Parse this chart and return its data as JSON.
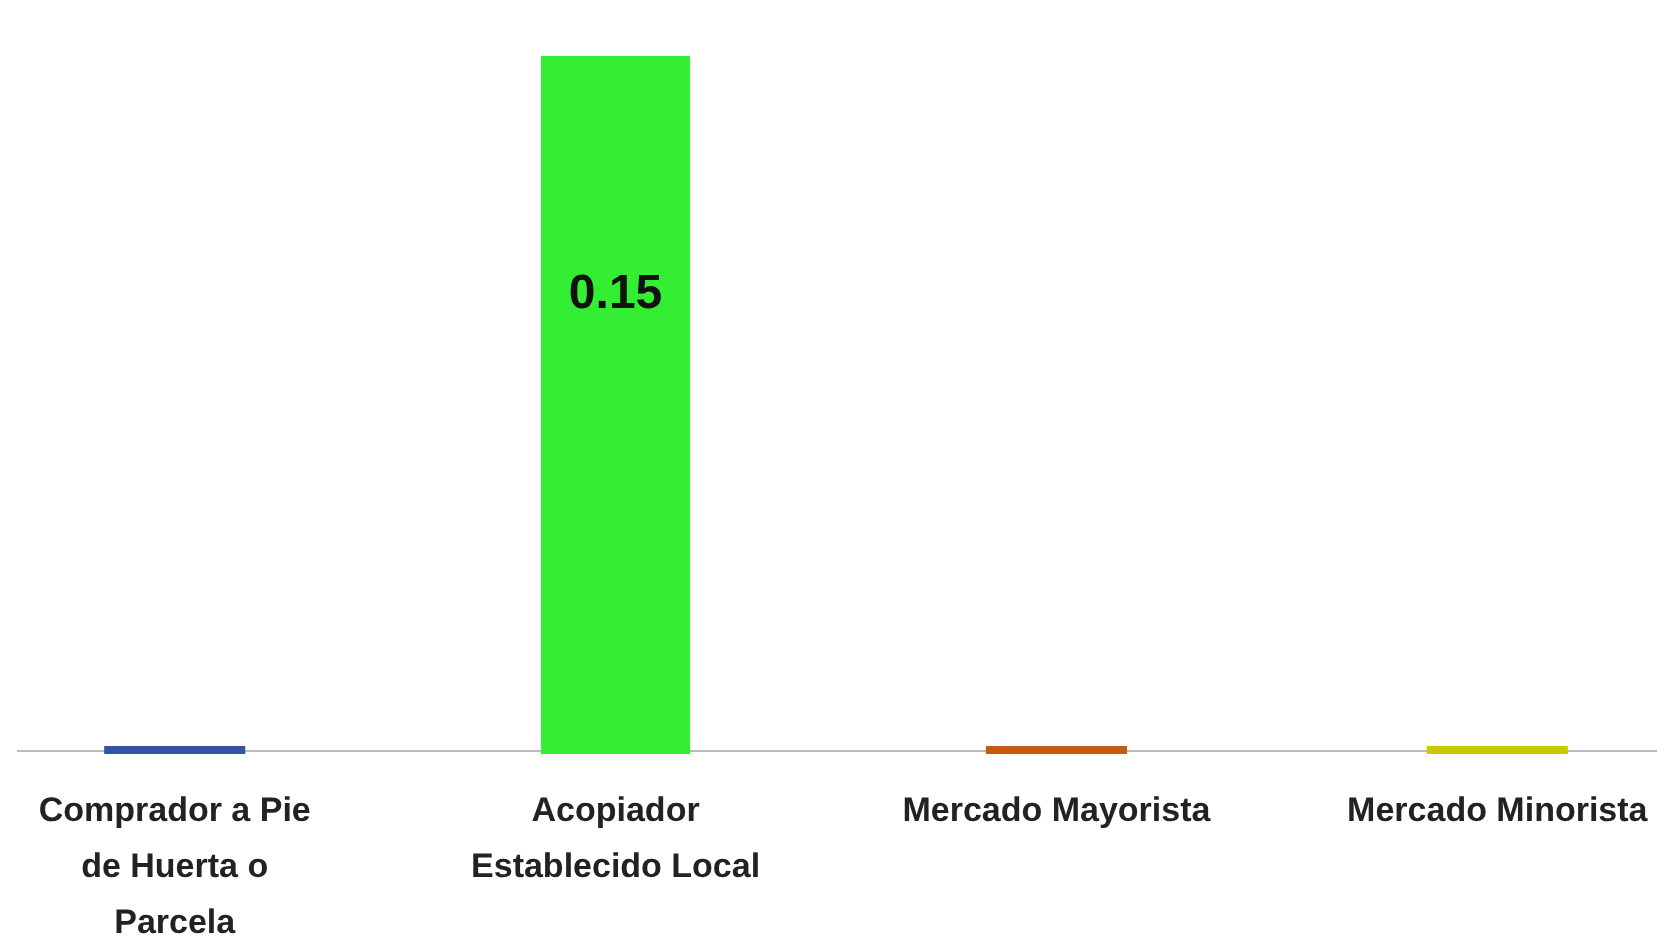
{
  "chart_data": {
    "type": "bar",
    "categories": [
      "Comprador a Pie de Huerta o Parcela",
      "Acopiador Establecido Local",
      "Mercado Mayorista",
      "Mercado Minorista"
    ],
    "values": [
      0,
      0.15,
      0,
      0
    ],
    "colors": [
      "#2f55a4",
      "#33ee33",
      "#c55a11",
      "#c9c900"
    ],
    "value_labels": [
      null,
      "0.15",
      null,
      null
    ]
  }
}
